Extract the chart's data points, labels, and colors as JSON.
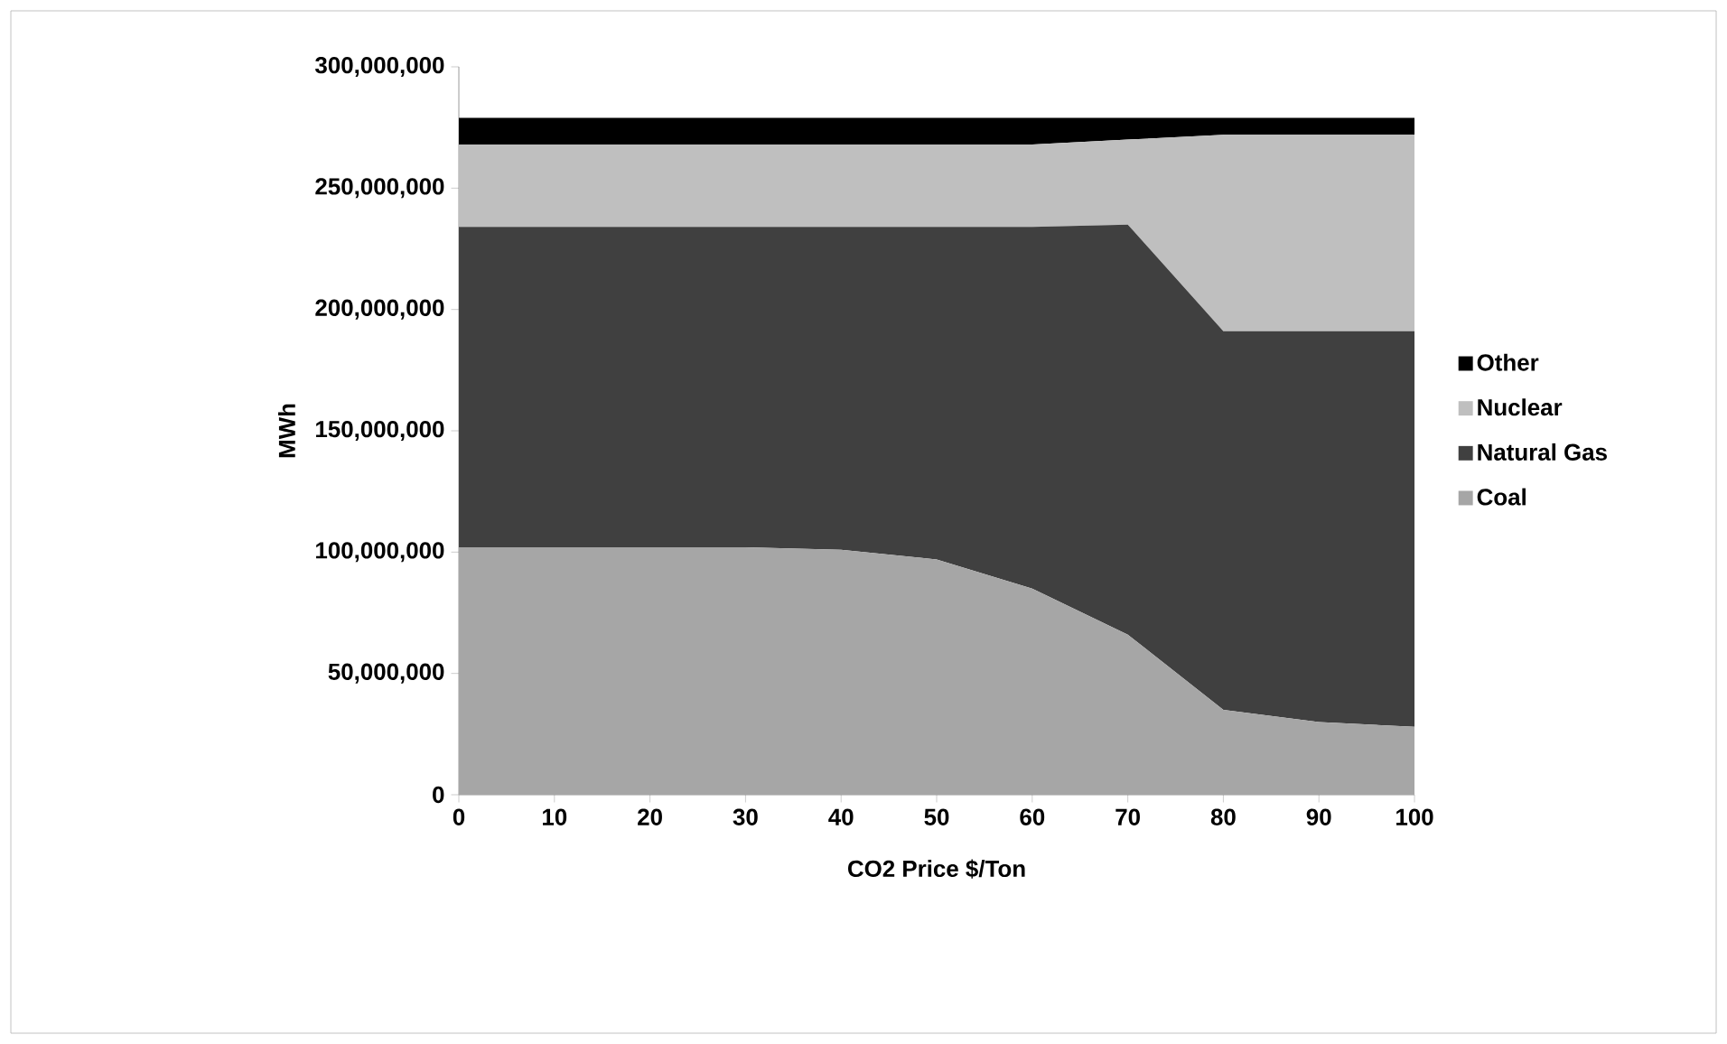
{
  "chart_data": {
    "type": "area",
    "stacked": true,
    "xlabel": "CO2 Price $/Ton",
    "ylabel": "MWh",
    "x": [
      0,
      10,
      20,
      30,
      40,
      50,
      60,
      70,
      80,
      90,
      100
    ],
    "series": [
      {
        "name": "Coal",
        "color": "#a6a6a6",
        "values": [
          102000000,
          102000000,
          102000000,
          102000000,
          101000000,
          97000000,
          85000000,
          66000000,
          35000000,
          30000000,
          28000000
        ]
      },
      {
        "name": "Natural Gas",
        "color": "#404040",
        "values": [
          132000000,
          132000000,
          132000000,
          132000000,
          133000000,
          137000000,
          149000000,
          169000000,
          156000000,
          161000000,
          163000000
        ]
      },
      {
        "name": "Nuclear",
        "color": "#bfbfbf",
        "values": [
          34000000,
          34000000,
          34000000,
          34000000,
          34000000,
          34000000,
          34000000,
          35000000,
          81000000,
          81000000,
          81000000
        ]
      },
      {
        "name": "Other",
        "color": "#000000",
        "values": [
          11000000,
          11000000,
          11000000,
          11000000,
          11000000,
          11000000,
          11000000,
          9000000,
          7000000,
          7000000,
          7000000
        ]
      }
    ],
    "xlim": [
      0,
      100
    ],
    "xticks": [
      0,
      10,
      20,
      30,
      40,
      50,
      60,
      70,
      80,
      90,
      100
    ],
    "ylim": [
      0,
      300000000
    ],
    "yticks": [
      {
        "value": 0,
        "label": "0"
      },
      {
        "value": 50000000,
        "label": "50,000,000"
      },
      {
        "value": 100000000,
        "label": "100,000,000"
      },
      {
        "value": 150000000,
        "label": "150,000,000"
      },
      {
        "value": 200000000,
        "label": "200,000,000"
      },
      {
        "value": 250000000,
        "label": "250,000,000"
      },
      {
        "value": 300000000,
        "label": "300,000,000"
      }
    ],
    "legend": "right",
    "grid": false
  }
}
